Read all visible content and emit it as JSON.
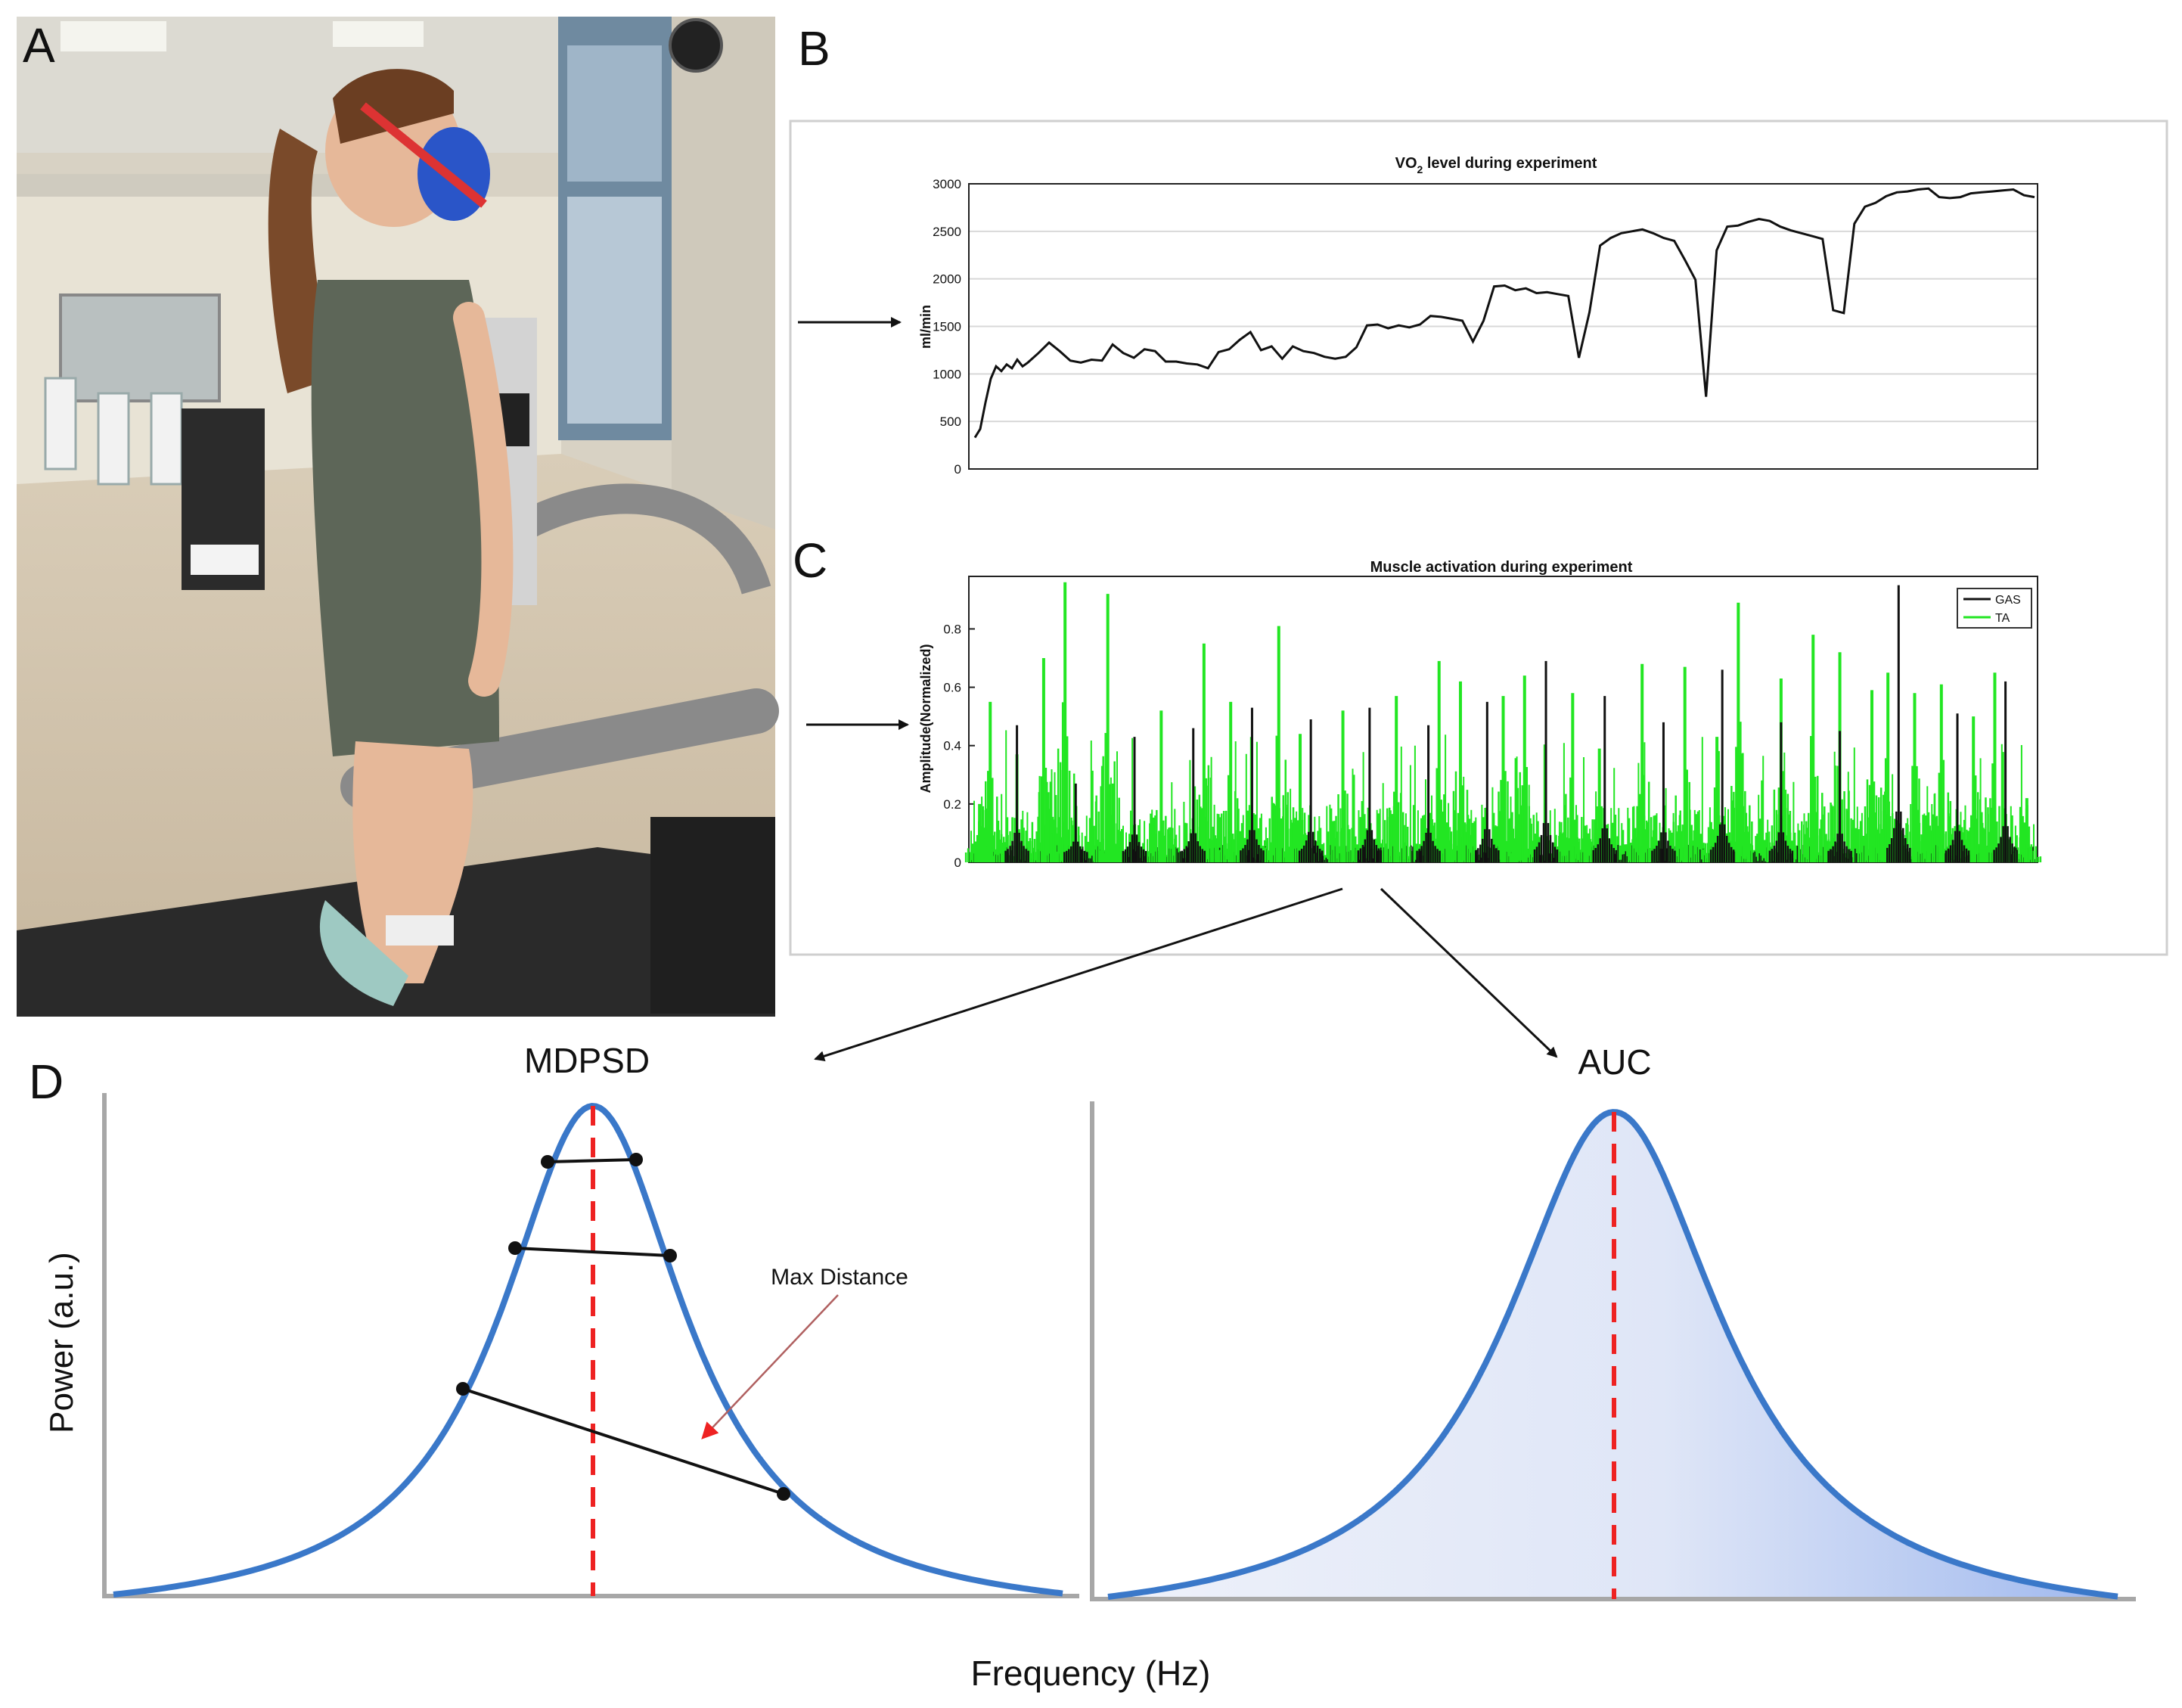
{
  "panels": {
    "a": {
      "letter": "A",
      "photo_description": "photo-lab-treadmill"
    },
    "b": {
      "letter": "B"
    },
    "c": {
      "letter": "C"
    },
    "d": {
      "letter": "D"
    }
  },
  "colors": {
    "line_black": "#111111",
    "ta_green": "#22e622",
    "psd_blue": "#3a78c9",
    "peak_red": "#ee2222",
    "fill_light": "#e6ebf8",
    "fill_dark": "#a9bff0",
    "axis_gray": "#a7a7a7",
    "grid": "#d8d8d8",
    "arrow_brown": "#b06060"
  },
  "chart_data": [
    {
      "type": "line",
      "title": "VO2 level during experiment",
      "title_main": "VO",
      "title_sub": "2",
      "title_rest": " level during experiment",
      "xlabel": "",
      "ylabel": "ml/min",
      "ylim": [
        0,
        3000
      ],
      "yticks": [
        "0",
        "500",
        "1000",
        "1500",
        "2000",
        "2500",
        "3000"
      ],
      "grid": true,
      "series": [
        {
          "name": "VO2",
          "x": [
            0,
            1,
            2,
            3,
            4,
            5,
            6,
            7,
            8,
            9,
            10,
            12,
            14,
            16,
            18,
            20,
            22,
            24,
            26,
            28,
            30,
            32,
            34,
            36,
            38,
            40,
            42,
            44,
            46,
            48,
            50,
            52,
            54,
            56,
            58,
            60,
            62,
            64,
            66,
            68,
            70,
            72,
            74,
            76,
            78,
            80,
            82,
            84,
            86,
            88,
            90,
            92,
            94,
            96,
            98,
            100,
            102,
            104,
            106,
            108,
            110,
            112,
            114,
            116,
            118,
            120,
            122,
            124,
            126,
            128,
            130,
            132,
            134,
            136,
            138,
            140,
            142,
            144,
            146,
            148,
            150,
            152,
            154,
            156,
            158,
            160,
            162,
            164,
            166,
            168,
            170,
            172,
            174,
            176,
            178,
            180,
            182,
            184,
            186,
            188,
            190,
            192,
            194,
            196,
            198,
            200
          ],
          "y": [
            330,
            420,
            700,
            950,
            1080,
            1030,
            1100,
            1060,
            1150,
            1080,
            1120,
            1220,
            1330,
            1240,
            1140,
            1120,
            1150,
            1140,
            1310,
            1220,
            1170,
            1260,
            1240,
            1130,
            1130,
            1110,
            1100,
            1060,
            1230,
            1260,
            1360,
            1440,
            1250,
            1290,
            1160,
            1290,
            1240,
            1220,
            1180,
            1160,
            1180,
            1280,
            1510,
            1520,
            1480,
            1510,
            1490,
            1520,
            1610,
            1600,
            1580,
            1560,
            1340,
            1560,
            1920,
            1930,
            1880,
            1900,
            1850,
            1860,
            1840,
            1820,
            1170,
            1650,
            2350,
            2430,
            2480,
            2500,
            2520,
            2480,
            2430,
            2400,
            2200,
            1990,
            760,
            2300,
            2550,
            2560,
            2600,
            2630,
            2610,
            2550,
            2510,
            2480,
            2450,
            2420,
            1670,
            1640,
            2580,
            2760,
            2800,
            2870,
            2910,
            2920,
            2940,
            2950,
            2860,
            2850,
            2860,
            2900,
            2910,
            2920,
            2930,
            2940,
            2880,
            2860
          ]
        }
      ]
    },
    {
      "type": "line",
      "title": "Muscle activation during experiment",
      "xlabel": "",
      "ylabel": "Amplitude(Normalized)",
      "ylim": [
        0,
        0.98
      ],
      "yticks": [
        "0",
        "0.2",
        "0.4",
        "0.6",
        "0.8"
      ],
      "legend": "top-right",
      "series": [
        {
          "name": "GAS",
          "peaks_x": [
            0.045,
            0.1,
            0.155,
            0.21,
            0.265,
            0.32,
            0.375,
            0.43,
            0.485,
            0.54,
            0.595,
            0.65,
            0.705,
            0.76,
            0.815,
            0.87,
            0.925,
            0.97
          ],
          "peaks_y": [
            0.47,
            0.27,
            0.43,
            0.46,
            0.53,
            0.49,
            0.53,
            0.47,
            0.55,
            0.69,
            0.57,
            0.48,
            0.66,
            0.48,
            0.45,
            0.95,
            0.51,
            0.62
          ]
        },
        {
          "name": "TA",
          "peaks_x": [
            0.01,
            0.02,
            0.045,
            0.07,
            0.09,
            0.13,
            0.135,
            0.18,
            0.22,
            0.245,
            0.29,
            0.31,
            0.35,
            0.4,
            0.44,
            0.46,
            0.5,
            0.52,
            0.565,
            0.59,
            0.63,
            0.67,
            0.7,
            0.72,
            0.76,
            0.79,
            0.815,
            0.845,
            0.86,
            0.885,
            0.91,
            0.94,
            0.96,
            0.99
          ],
          "peaks_y": [
            0.2,
            0.55,
            0.37,
            0.7,
            0.96,
            0.92,
            0.27,
            0.52,
            0.75,
            0.55,
            0.81,
            0.44,
            0.52,
            0.57,
            0.69,
            0.62,
            0.57,
            0.64,
            0.58,
            0.39,
            0.68,
            0.67,
            0.43,
            0.89,
            0.63,
            0.78,
            0.72,
            0.59,
            0.65,
            0.58,
            0.61,
            0.5,
            0.65,
            0.22
          ]
        }
      ]
    },
    {
      "type": "line",
      "title": "MDPSD",
      "xlabel": "Frequency (Hz)",
      "ylabel": "Power (a.u.)",
      "annotation": "Max Distance",
      "series": [
        {
          "name": "PSD",
          "shape": "lorentzian peak"
        }
      ]
    },
    {
      "type": "area",
      "title": "AUC",
      "xlabel": "Frequency (Hz)",
      "ylabel": "Power (a.u.)",
      "series": [
        {
          "name": "PSD",
          "shape": "lorentzian peak, area shaded"
        }
      ]
    }
  ]
}
